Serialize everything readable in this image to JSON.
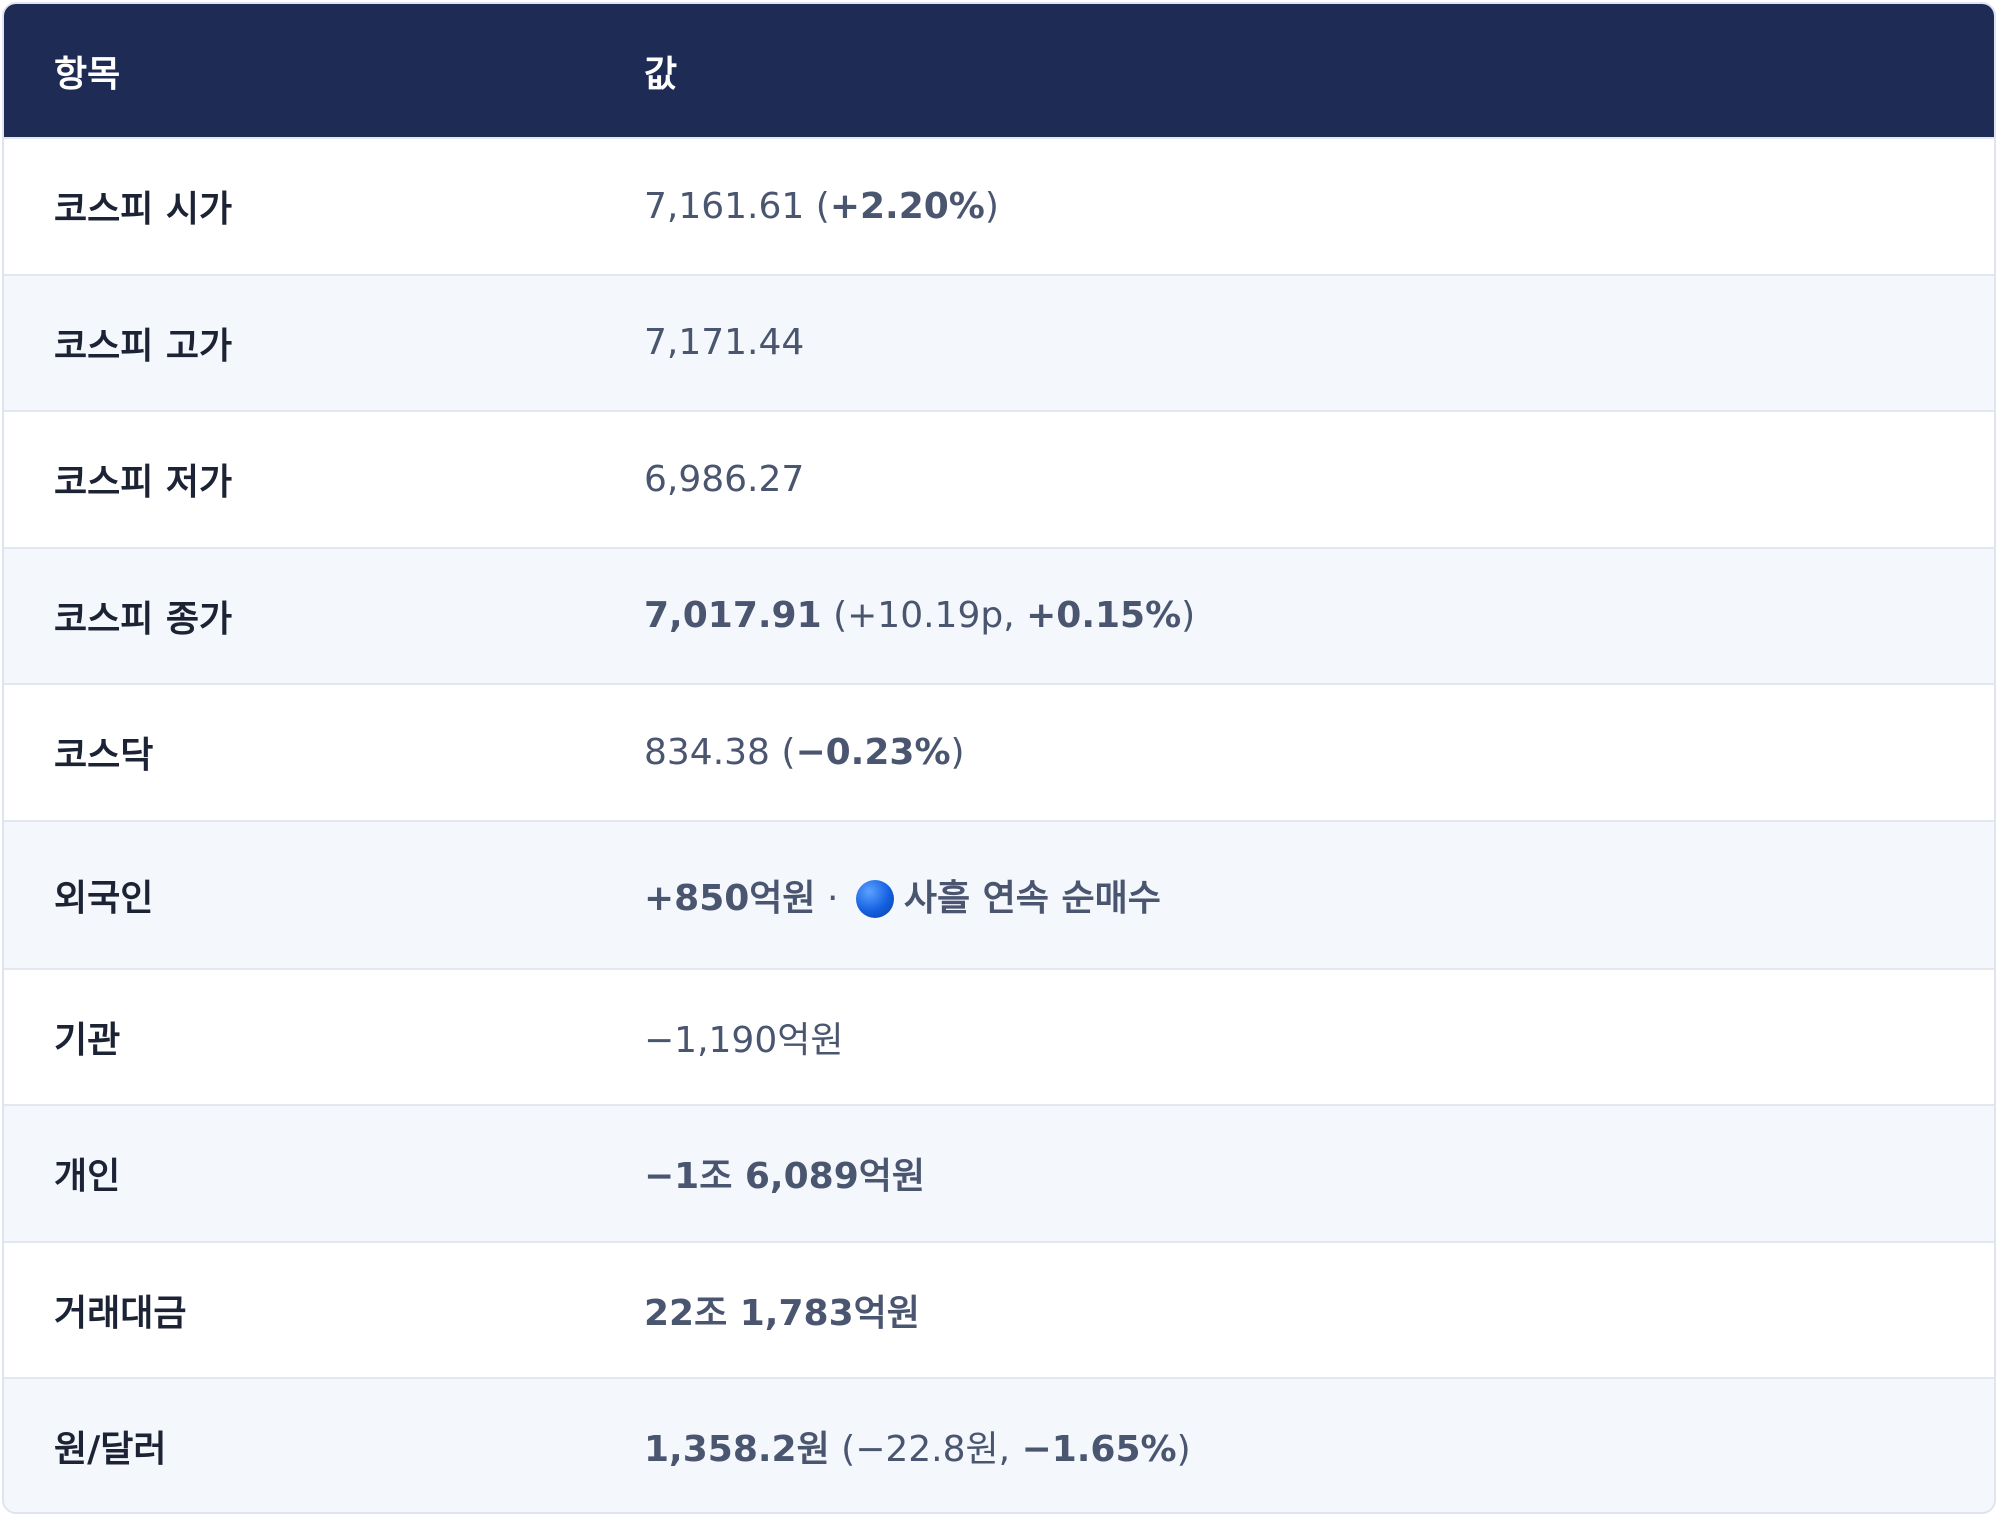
{
  "header": {
    "col_key": "항목",
    "col_value": "값"
  },
  "rows": [
    {
      "key": "코스피 시가",
      "value": {
        "a": "7,161.61 (",
        "b": "+2.20%",
        "c": ")"
      }
    },
    {
      "key": "코스피 고가",
      "value": {
        "a": "7,171.44"
      }
    },
    {
      "key": "코스피 저가",
      "value": {
        "a": "6,986.27"
      }
    },
    {
      "key": "코스피 종가",
      "value": {
        "a": "7,017.91",
        "b": " (+10.19p, ",
        "c": "+0.15%",
        "d": ")"
      }
    },
    {
      "key": "코스닥",
      "value": {
        "a": "834.38 (",
        "b": "−0.23%",
        "c": ")"
      }
    },
    {
      "key": "외국인",
      "value": {
        "a": "+850억원",
        "b": " · ",
        "c": "사흘 연속 순매수"
      }
    },
    {
      "key": "기관",
      "value": {
        "a": "−1,190억원"
      }
    },
    {
      "key": "개인",
      "value": {
        "a": "−1조 6,089억원"
      }
    },
    {
      "key": "거래대금",
      "value": {
        "a": "22조 1,783억원"
      }
    },
    {
      "key": "원/달러",
      "value": {
        "a": "1,358.2원",
        "b": " (−22.8원, ",
        "c": "−1.65%",
        "d": ")"
      }
    }
  ],
  "icons": {
    "foreign_badge": "blue-circle-icon"
  },
  "colors": {
    "header_bg": "#1e2b55",
    "alt_row_bg": "#f4f7fc",
    "value_text": "#4a5570",
    "key_text": "#1c2334"
  }
}
